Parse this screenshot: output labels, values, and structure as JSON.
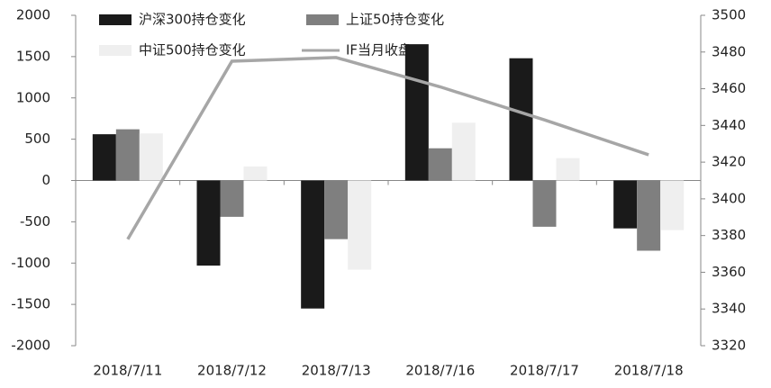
{
  "chart_data": {
    "type": "bar",
    "categories": [
      "2018/7/11",
      "2018/7/12",
      "2018/7/13",
      "2018/7/16",
      "2018/7/17",
      "2018/7/18"
    ],
    "series": [
      {
        "name": "沪深300持仓变化",
        "color": "#1a1a1a",
        "values": [
          560,
          -1030,
          -1550,
          1650,
          1480,
          -580
        ]
      },
      {
        "name": "上证50持仓变化",
        "color": "#7f7f7f",
        "values": [
          620,
          -440,
          -710,
          390,
          -560,
          -850
        ]
      },
      {
        "name": "中证500持仓变化",
        "color": "#efefef",
        "values": [
          570,
          170,
          -1080,
          700,
          270,
          -600
        ]
      },
      {
        "name": "IF当月收盘",
        "color": "#a6a6a6",
        "type": "line",
        "axis": "y2",
        "values": [
          3378,
          3475,
          3477,
          3461,
          3443,
          3424
        ]
      }
    ],
    "ylim": [
      -2000,
      2000
    ],
    "yticks": [
      -2000,
      -1500,
      -1000,
      -500,
      0,
      500,
      1000,
      1500,
      2000
    ],
    "y2lim": [
      3320,
      3500
    ],
    "y2ticks": [
      3320,
      3340,
      3360,
      3380,
      3400,
      3420,
      3440,
      3460,
      3480,
      3500
    ]
  }
}
